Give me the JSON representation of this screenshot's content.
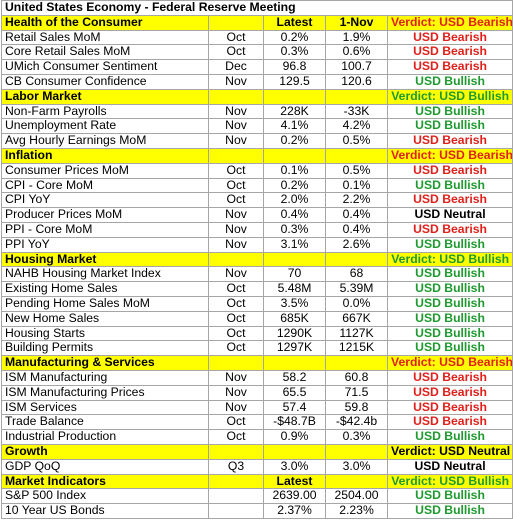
{
  "title": "United States Economy - Federal Reserve Meeting",
  "columns": {
    "latest": "Latest",
    "previous": "1-Nov"
  },
  "colors": {
    "bearish": "#e0201b",
    "bullish": "#1e9a2e",
    "neutral": "#000000",
    "section_bg": "#ffff00"
  },
  "sections": [
    {
      "name": "Health of the Consumer",
      "latest_header": "Latest",
      "previous_header": "1-Nov",
      "verdict": "Verdict: USD Bearish",
      "verdict_tone": "red",
      "rows": [
        {
          "indicator": "Retail Sales MoM",
          "period": "Oct",
          "latest": "0.2%",
          "previous": "1.9%",
          "signal": "USD Bearish",
          "tone": "red"
        },
        {
          "indicator": "Core Retail Sales MoM",
          "period": "Oct",
          "latest": "0.3%",
          "previous": "0.6%",
          "signal": "USD Bearish",
          "tone": "red"
        },
        {
          "indicator": "UMich Consumer Sentiment",
          "period": "Dec",
          "latest": "96.8",
          "previous": "100.7",
          "signal": "USD Bearish",
          "tone": "red"
        },
        {
          "indicator": "CB Consumer Confidence",
          "period": "Nov",
          "latest": "129.5",
          "previous": "120.6",
          "signal": "USD Bullish",
          "tone": "green"
        }
      ]
    },
    {
      "name": "Labor Market",
      "latest_header": "",
      "previous_header": "",
      "verdict": "Verdict: USD Bullish",
      "verdict_tone": "green",
      "rows": [
        {
          "indicator": "Non-Farm Payrolls",
          "period": "Nov",
          "latest": "228K",
          "previous": "-33K",
          "signal": "USD Bullish",
          "tone": "green"
        },
        {
          "indicator": "Unemployment Rate",
          "period": "Nov",
          "latest": "4.1%",
          "previous": "4.2%",
          "signal": "USD Bullish",
          "tone": "green"
        },
        {
          "indicator": "Avg Hourly Earnings MoM",
          "period": "Nov",
          "latest": "0.2%",
          "previous": "0.5%",
          "signal": "USD Bearish",
          "tone": "red"
        }
      ]
    },
    {
      "name": "Inflation",
      "latest_header": "",
      "previous_header": "",
      "verdict": "Verdict: USD Bearish",
      "verdict_tone": "red",
      "rows": [
        {
          "indicator": "Consumer Prices MoM",
          "period": "Oct",
          "latest": "0.1%",
          "previous": "0.5%",
          "signal": "USD Bearish",
          "tone": "red"
        },
        {
          "indicator": "CPI - Core MoM",
          "period": "Oct",
          "latest": "0.2%",
          "previous": "0.1%",
          "signal": "USD Bullish",
          "tone": "green"
        },
        {
          "indicator": "CPI YoY",
          "period": "Oct",
          "latest": "2.0%",
          "previous": "2.2%",
          "signal": "USD Bearish",
          "tone": "red"
        },
        {
          "indicator": "Producer Prices MoM",
          "period": "Nov",
          "latest": "0.4%",
          "previous": "0.4%",
          "signal": "USD Neutral",
          "tone": "black"
        },
        {
          "indicator": "PPI - Core MoM",
          "period": "Nov",
          "latest": "0.3%",
          "previous": "0.4%",
          "signal": "USD Bearish",
          "tone": "red"
        },
        {
          "indicator": "PPI YoY",
          "period": "Nov",
          "latest": "3.1%",
          "previous": "2.6%",
          "signal": "USD Bullish",
          "tone": "green"
        }
      ]
    },
    {
      "name": "Housing Market",
      "latest_header": "",
      "previous_header": "",
      "verdict": "Verdict: USD Bullish",
      "verdict_tone": "green",
      "rows": [
        {
          "indicator": "NAHB Housing Market Index",
          "period": "Nov",
          "latest": "70",
          "previous": "68",
          "signal": "USD Bullish",
          "tone": "green"
        },
        {
          "indicator": "Existing Home Sales",
          "period": "Oct",
          "latest": "5.48M",
          "previous": "5.39M",
          "signal": "USD Bullish",
          "tone": "green"
        },
        {
          "indicator": "Pending Home Sales MoM",
          "period": "Oct",
          "latest": "3.5%",
          "previous": "0.0%",
          "signal": "USD Bullish",
          "tone": "green"
        },
        {
          "indicator": "New Home Sales",
          "period": "Oct",
          "latest": "685K",
          "previous": "667K",
          "signal": "USD Bullish",
          "tone": "green"
        },
        {
          "indicator": "Housing Starts",
          "period": "Oct",
          "latest": "1290K",
          "previous": "1127K",
          "signal": "USD Bullish",
          "tone": "green"
        },
        {
          "indicator": "Building Permits",
          "period": "Oct",
          "latest": "1297K",
          "previous": "1215K",
          "signal": "USD Bullish",
          "tone": "green"
        }
      ]
    },
    {
      "name": "Manufacturing & Services",
      "latest_header": "",
      "previous_header": "",
      "verdict": "Verdict: USD Bearish",
      "verdict_tone": "red",
      "rows": [
        {
          "indicator": "ISM Manufacturing",
          "period": "Nov",
          "latest": "58.2",
          "previous": "60.8",
          "signal": "USD Bearish",
          "tone": "red"
        },
        {
          "indicator": "ISM Manufacturing Prices",
          "period": "Nov",
          "latest": "65.5",
          "previous": "71.5",
          "signal": "USD Bearish",
          "tone": "red"
        },
        {
          "indicator": "ISM Services",
          "period": "Nov",
          "latest": "57.4",
          "previous": "59.8",
          "signal": "USD Bearish",
          "tone": "red"
        },
        {
          "indicator": "Trade Balance",
          "period": "Oct",
          "latest": "-$48.7B",
          "previous": "-$42.4b",
          "signal": "USD Bearish",
          "tone": "red"
        },
        {
          "indicator": "Industrial Production",
          "period": "Oct",
          "latest": "0.9%",
          "previous": "0.3%",
          "signal": "USD Bullish",
          "tone": "green"
        }
      ]
    },
    {
      "name": "Growth",
      "latest_header": "",
      "previous_header": "",
      "verdict": "Verdict: USD Neutral",
      "verdict_tone": "black",
      "rows": [
        {
          "indicator": "GDP QoQ",
          "period": "Q3",
          "latest": "3.0%",
          "previous": "3.0%",
          "signal": "USD Neutral",
          "tone": "black"
        }
      ]
    },
    {
      "name": "Market Indicators",
      "latest_header": "Latest",
      "previous_header": "",
      "verdict": "Verdict: USD Bullish",
      "verdict_tone": "green",
      "rows": [
        {
          "indicator": "S&P 500 Index",
          "period": "",
          "latest": "2639.00",
          "previous": "2504.00",
          "signal": "USD Bullish",
          "tone": "green"
        },
        {
          "indicator": "10 Year US Bonds",
          "period": "",
          "latest": "2.37%",
          "previous": "2.23%",
          "signal": "USD Bullish",
          "tone": "green"
        }
      ]
    }
  ]
}
